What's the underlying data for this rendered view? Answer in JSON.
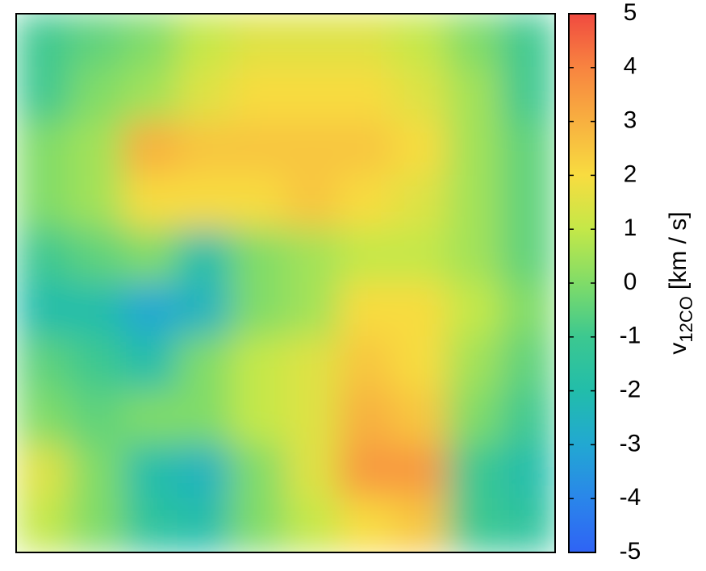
{
  "chart_data": {
    "type": "heatmap",
    "z": [
      [
        -1,
        -0.5,
        0,
        1,
        1.5,
        1.5,
        1.5,
        1,
        0,
        -1
      ],
      [
        -1,
        0,
        0.5,
        1.5,
        2,
        2,
        2,
        1.5,
        0.5,
        -1
      ],
      [
        0,
        0.5,
        3,
        2.5,
        2.5,
        2.5,
        2.5,
        2,
        0.5,
        -0.5
      ],
      [
        0,
        0.5,
        2,
        2,
        2,
        2.5,
        2,
        1.5,
        0.5,
        -0.5
      ],
      [
        -1,
        -0.5,
        0,
        -2,
        0,
        0.5,
        1,
        1,
        0.5,
        -0.5
      ],
      [
        -2,
        -2,
        -3,
        -2.5,
        0,
        0.5,
        2,
        2,
        1,
        0
      ],
      [
        -0.5,
        -1,
        -2,
        0,
        1,
        1.5,
        2.5,
        2,
        0.5,
        -0.5
      ],
      [
        0,
        -0.5,
        0,
        0,
        1,
        1.5,
        3,
        2.5,
        0,
        -1
      ],
      [
        1.5,
        0,
        -2,
        -2.5,
        0,
        1.5,
        3.5,
        3.5,
        -1,
        -2
      ],
      [
        1,
        0,
        -1.5,
        -2,
        0,
        1,
        2,
        2.5,
        -1,
        -1.5
      ]
    ],
    "clim": [
      -5,
      5
    ],
    "cticks": [
      -5,
      -4,
      -3,
      -2,
      -1,
      0,
      1,
      2,
      3,
      4,
      5
    ],
    "colormap": [
      "#2f63f5",
      "#2a86ea",
      "#22a8d2",
      "#22bdaa",
      "#3cc890",
      "#80dc68",
      "#c4e848",
      "#f8dc40",
      "#f8b040",
      "#f88440",
      "#f04a40"
    ],
    "colorbar_label": {
      "main": "v",
      "sub": "12CO",
      "unit": "[km / s]"
    }
  }
}
